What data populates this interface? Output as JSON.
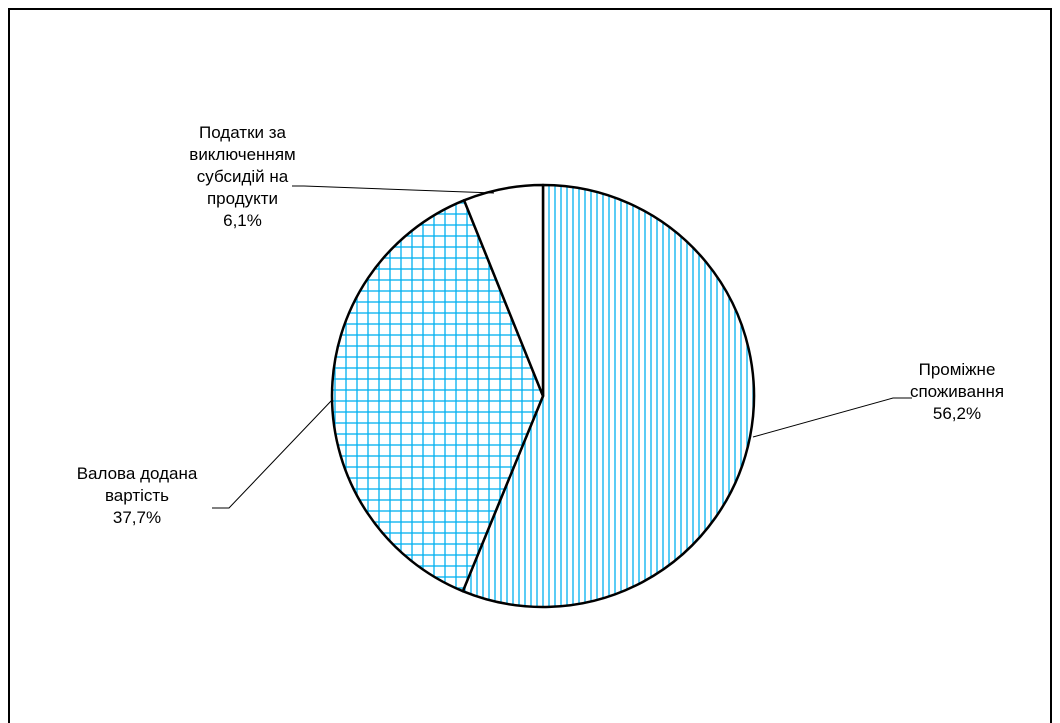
{
  "chart_data": {
    "type": "pie",
    "title": "",
    "slices": [
      {
        "label_lines": [
          "Проміжне",
          "споживання"
        ],
        "value": 56.2,
        "value_label": "56,2%",
        "pattern": "vertical-lines"
      },
      {
        "label_lines": [
          "Валова додана",
          "вартість"
        ],
        "value": 37.7,
        "value_label": "37,7%",
        "pattern": "grid"
      },
      {
        "label_lines": [
          "Податки за",
          "виключенням",
          "субсидій на",
          "продукти"
        ],
        "value": 6.1,
        "value_label": "6,1%",
        "pattern": "none"
      }
    ],
    "start": "12 o'clock, clockwise",
    "legend": "none",
    "colors": {
      "pattern": "#00b0f0",
      "outline": "#000000",
      "background": "#ffffff"
    }
  }
}
